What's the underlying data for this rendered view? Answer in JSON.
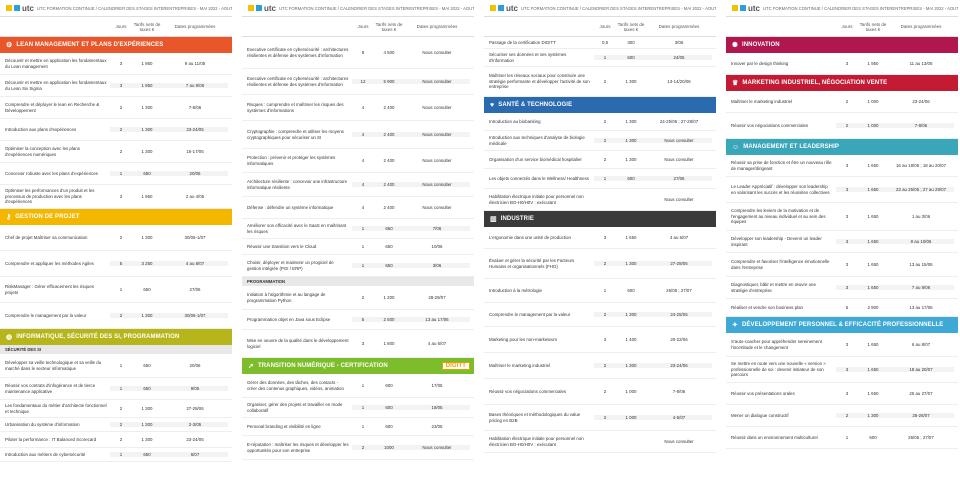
{
  "header": "UTC FORMATION CONTINUE / CALENDRIER DES STAGES INTERENTREPRISES - MAI 2022 - AOUT 2022",
  "logo": "utc",
  "cols": [
    "Jours",
    "Tarifs nets de taxes €",
    "Dates programmées"
  ],
  "colors": {
    "orange": "#e8562a",
    "gold": "#f3b700",
    "olive": "#b7b51c",
    "green": "#7dbd2c",
    "blue": "#2a6bb0",
    "dark": "#3a3a3a",
    "red": "#c41b35",
    "teal": "#3aa6b9",
    "cyan": "#3fa9d6",
    "magenta": "#b0174f"
  },
  "pages": [
    {
      "blocks": [
        {
          "title": "LEAN MANAGEMENT ET PLANS D'EXPÉRIENCES",
          "color": "#e8562a",
          "icon": "gear-icon",
          "glyph": "⚙",
          "rows": [
            {
              "t": "Découvrir et mettre en application les fondamentaux du Lean management",
              "d": "3",
              "p": "1 950",
              "g": "9 au 11/05",
              "h": 22
            },
            {
              "t": "Découvrir et mettre en application les fondamentaux du Lean Six Sigma",
              "d": "3",
              "p": "1 950",
              "g": "7 au 9/06",
              "h": 22
            },
            {
              "t": "Comprendre et déployer le lean en Recherche & Développement",
              "d": "2",
              "p": "1 300",
              "g": "7-8/06",
              "h": 22
            },
            {
              "t": "Introduction aux plans d'expériences",
              "d": "2",
              "p": "1 300",
              "g": "23-24/05",
              "h": 22
            },
            {
              "t": "Optimiser la conception avec les plans d'expériences numériques",
              "d": "2",
              "p": "1 300",
              "g": "16-17/05",
              "h": 22
            },
            {
              "t": "Concevoir robuste avec les plans d'expériences",
              "d": "1",
              "p": "650",
              "g": "20/05",
              "h": 22
            },
            {
              "t": "Optimiser les performances d'un produit et les processus de production avec les plans d'expériences",
              "d": "3",
              "p": "1 950",
              "g": "2 au 4/05",
              "h": 24
            }
          ]
        },
        {
          "title": "GESTION DE PROJET",
          "color": "#f3b700",
          "icon": "key-icon",
          "glyph": "⚷",
          "rows": [
            {
              "t": "Chef de projet Maîtriser sa communication",
              "d": "2",
              "p": "1 300",
              "g": "30/06-1/07",
              "h": 26
            },
            {
              "t": "Comprendre et appliquer les méthodes Agiles",
              "d": "5",
              "p": "3 250",
              "g": "4 au 8/07",
              "h": 26
            },
            {
              "t": "RiskManager : Gérer efficacement les risques projets",
              "d": "1",
              "p": "650",
              "g": "27/06",
              "h": 26
            },
            {
              "t": "Comprendre le management par la valeur",
              "d": "2",
              "p": "1 300",
              "g": "30/06-1/07",
              "h": 26
            }
          ]
        },
        {
          "title": "INFORMATIQUE, SÉCURITÉ DES SI, PROGRAMMATION",
          "color": "#b7b51c",
          "icon": "globe-icon",
          "glyph": "◍",
          "sub": "SÉCURITÉ DES SI",
          "rows": [
            {
              "t": "Développer sa veille technologique et sa veille du marché dans le secteur informatique",
              "d": "1",
              "p": "650",
              "g": "20/06",
              "h": 24
            },
            {
              "t": "Réussir vos contrats d'infogérance et de tierce maintenance applicative",
              "d": "1",
              "p": "650",
              "g": "9/05",
              "h": 22
            },
            {
              "t": "Les fondamentaux du métier d'architecte fonctionnel et technique",
              "d": "2",
              "p": "1 300",
              "g": "27-28/06",
              "h": 18
            },
            {
              "t": "Urbanisation du système d'information",
              "d": "2",
              "p": "1 300",
              "g": "2-3/05",
              "h": 14
            },
            {
              "t": "Piloter la performance : IT Balanced Scorecard",
              "d": "2",
              "p": "1 300",
              "g": "23-24/05",
              "h": 16
            },
            {
              "t": "Introduction aux métiers de cybersécurité",
              "d": "1",
              "p": "650",
              "g": "6/07",
              "h": 14
            }
          ]
        }
      ]
    },
    {
      "blocks": [
        {
          "rows": [
            {
              "t": "Executive certificate en cybersécurité : architectures résilientes et défense des systèmes d'information",
              "d": "8",
              "p": "4 500",
              "g": "Nous consulter",
              "h": 32
            },
            {
              "t": "Executive certificate en cybersécurité : architectures résilientes et défense des systèmes d'information",
              "d": "12",
              "p": "5 900",
              "g": "Nous consulter",
              "h": 26
            },
            {
              "t": "Risques : comprendre et maîtriser les risques des systèmes d'informations",
              "d": "4",
              "p": "2 400",
              "g": "Nous consulter",
              "h": 26
            },
            {
              "t": "Cryptographie : comprendre et utiliser les moyens cryptographiques pour sécuriser un SI",
              "d": "4",
              "p": "2 400",
              "g": "Nous consulter",
              "h": 28
            },
            {
              "t": "Protection : prévenir et protéger les systèmes informatiques",
              "d": "4",
              "p": "2 400",
              "g": "Nous consulter",
              "h": 24
            },
            {
              "t": "Architecture résiliente : concevoir une infrastructure informatique résiliente",
              "d": "4",
              "p": "2 400",
              "g": "Nous consulter",
              "h": 24
            },
            {
              "t": "Défense : défendre un système informatique",
              "d": "4",
              "p": "2 400",
              "g": "Nous consulter",
              "h": 22
            },
            {
              "t": "Améliorer son efficacité avec le SaaS en maîtrisant les risques",
              "d": "1",
              "p": "650",
              "g": "7/06",
              "h": 20
            },
            {
              "t": "Réussir une transition vers le Cloud",
              "d": "1",
              "p": "650",
              "g": "10/06",
              "h": 16
            },
            {
              "t": "Choisir, déployer et maintenir un progiciel de gestion intégrée (PGI / ERP)",
              "d": "1",
              "p": "650",
              "g": "3/06",
              "h": 22
            }
          ],
          "sub2": "PROGRAMMATION",
          "rows2": [
            {
              "t": "Initiation à l'algorithmie et au langage de programmation Python",
              "d": "2",
              "p": "1 200",
              "g": "28-29/07",
              "h": 24
            },
            {
              "t": "Programmation objet en Java sous Eclipse",
              "d": "5",
              "p": "2 500",
              "g": "13 au 17/06",
              "h": 20
            },
            {
              "t": "Mise en oeuvre de la qualité dans le développement logiciel",
              "d": "3",
              "p": "1 800",
              "g": "4 au 6/07",
              "h": 28
            }
          ]
        },
        {
          "title": "TRANSITION NUMÉRIQUE - CERTIFICATION",
          "color": "#7dbd2c",
          "icon": "rocket-icon",
          "glyph": "➚",
          "badge": "DIGITT",
          "rows": [
            {
              "t": "Gérer des données, des tâches, des contacts - créer des contenus graphiques, vidéos, animation",
              "d": "1",
              "p": "600",
              "g": "17/05",
              "h": 24
            },
            {
              "t": "Organiser, gérer des projets et travailler en mode collaboratif",
              "d": "1",
              "p": "600",
              "g": "18/05",
              "h": 20
            },
            {
              "t": "Personal branding et visibilité en ligne",
              "d": "1",
              "p": "600",
              "g": "23/05",
              "h": 18
            },
            {
              "t": "E-réputation : maîtriser les risques et développer les opportunités pour son entreprise",
              "d": "2",
              "p": "1000",
              "g": "Nous consulter",
              "h": 24
            }
          ]
        }
      ]
    },
    {
      "blocks": [
        {
          "rows": [
            {
              "t": "Passage de la certification DIGITT",
              "d": "0,5",
              "p": "300",
              "g": "3/06",
              "h": 12
            },
            {
              "t": "Sécuriser ses données et ses systèmes d'information",
              "d": "1",
              "p": "600",
              "g": "24/05",
              "h": 18
            },
            {
              "t": "Maîtriser les réseaux sociaux pour construire une stratégie performante et développer l'activité de son entreprise",
              "d": "2",
              "p": "1 300",
              "g": "13-14/20/06",
              "h": 30
            }
          ]
        },
        {
          "title": "SANTÉ & TECHNOLOGIE",
          "color": "#2a6bb0",
          "icon": "heart-icon",
          "glyph": "♥",
          "rows": [
            {
              "t": "Introduction au biobanking",
              "d": "2",
              "p": "1 300",
              "g": "24-25/05 ; 27-28/07",
              "h": 18
            },
            {
              "t": "Introduction aux techniques d'analyse de biologie médicale",
              "d": "2",
              "p": "1 300",
              "g": "Nous consulter",
              "h": 20
            },
            {
              "t": "Organisation d'un service biomédical hospitalier",
              "d": "2",
              "p": "1 300",
              "g": "Nous consulter",
              "h": 18
            },
            {
              "t": "Les objets connectés dans le Wellness/ Healthness",
              "d": "1",
              "p": "600",
              "g": "27/06",
              "h": 20
            },
            {
              "t": "Habilitation électrique initiale pour personnel non électricien BO-H0/H0V : exécutant",
              "d": "",
              "p": "",
              "g": "Nous consulter",
              "h": 22
            }
          ]
        },
        {
          "title": "INDUSTRIE",
          "color": "#3a3a3a",
          "icon": "factory-icon",
          "glyph": "▥",
          "rows": [
            {
              "t": "L'ergonomie dans une unité de production",
              "d": "3",
              "p": "1 650",
              "g": "4 au 6/07",
              "h": 22
            },
            {
              "t": "Évaluer et gérer la sécurité par les Facteurs Humains et organisationnels (FHO)",
              "d": "2",
              "p": "1 300",
              "g": "27-28/06",
              "h": 30
            },
            {
              "t": "Introduction à la métrologie",
              "d": "1",
              "p": "600",
              "g": "26/05 ; 27/07",
              "h": 24
            },
            {
              "t": "Comprendre le management par la valeur",
              "d": "2",
              "p": "1 300",
              "g": "24-25/05",
              "h": 24
            },
            {
              "t": "Marketing pour les non-marketeurs",
              "d": "3",
              "p": "1 400",
              "g": "20-22/06",
              "h": 26
            },
            {
              "t": "Maîtriser le marketing industriel",
              "d": "2",
              "p": "1 300",
              "g": "23-24/06",
              "h": 26
            },
            {
              "t": "Réussir vos négociations commerciales",
              "d": "2",
              "p": "1 000",
              "g": "7-8/06",
              "h": 26
            },
            {
              "t": "Bases théoriques et méthodologiques du value pricing en B2B",
              "d": "2",
              "p": "1 000",
              "g": "4-5/07",
              "h": 26
            },
            {
              "t": "Habilitation électrique initiale pour personnel non électricien BO-H0/H0V : exécutant",
              "d": "",
              "p": "",
              "g": "Nous consulter",
              "h": 22
            }
          ]
        }
      ]
    },
    {
      "blocks": [
        {
          "title": "INNOVATION",
          "color": "#b0174f",
          "icon": "lightbulb-icon",
          "glyph": "✺",
          "rows": [
            {
              "t": "Innover par le design thinking",
              "d": "3",
              "p": "1 950",
              "g": "11 au 13/05",
              "h": 22
            }
          ]
        },
        {
          "title": "MARKETING INDUSTRIEL, NÉGOCIATION VENTE",
          "color": "#c41b35",
          "icon": "trophy-icon",
          "glyph": "♛",
          "rows": [
            {
              "t": "Maîtriser le marketing industriel",
              "d": "2",
              "p": "1 000",
              "g": "23-24/06",
              "h": 22
            },
            {
              "t": "Réussir vos négociations commerciales",
              "d": "2",
              "p": "1 000",
              "g": "7-8/06",
              "h": 26
            }
          ]
        },
        {
          "title": "MANAGEMENT ET LEADERSHIP",
          "color": "#3aa6b9",
          "icon": "people-icon",
          "glyph": "☺",
          "rows": [
            {
              "t": "Réussir sa prise de fonction et être un nouveau rôle de manager/dirigeant",
              "d": "3",
              "p": "1 650",
              "g": "16 au 18/05 ; 18 au 20/07",
              "h": 22
            },
            {
              "t": "Le Leader Appréciatif : développer son leadership en valorisant les succès et les réussites collectives",
              "d": "3",
              "p": "1 650",
              "g": "23 au 25/05 ; 27 au 29/07",
              "h": 26
            },
            {
              "t": "Comprendre les leviers de la motivation et de l'engagement au niveau individuel et au sein des équipes",
              "d": "3",
              "p": "1 650",
              "g": "1 au 3/06",
              "h": 28
            },
            {
              "t": "Développer son leadership - Devenir un leader inspirant",
              "d": "3",
              "p": "1 650",
              "g": "8 au 10/06",
              "h": 22
            },
            {
              "t": "Comprendre et favoriser l'intelligence émotionnelle dans l'entreprise",
              "d": "3",
              "p": "1 650",
              "g": "13 au 15/06",
              "h": 24
            },
            {
              "t": "Diagnostiquer, bâtir et mettre en œuvre une stratégie d'entreprise",
              "d": "3",
              "p": "1 650",
              "g": "7 au 9/06",
              "h": 22
            },
            {
              "t": "Réaliser et vendre son business plan",
              "d": "5",
              "p": "2 900",
              "g": "13 au 17/06",
              "h": 18
            }
          ]
        },
        {
          "title": "DÉVELOPPEMENT PERSONNEL & EFFICACITÉ PROFESSIONNELLE",
          "color": "#3fa9d6",
          "icon": "star-icon",
          "glyph": "✦",
          "rows": [
            {
              "t": "S'auto-coacher pour appréhender sereinement l'incertitude et le changement",
              "d": "3",
              "p": "1 650",
              "g": "6 au 8/07",
              "h": 24
            },
            {
              "t": "Se mettre en route vers une nouvelle « version » professionnelle de soi : devenir initiateur de son parcours",
              "d": "3",
              "p": "1 650",
              "g": "18 au 20/07",
              "h": 26
            },
            {
              "t": "Réussir vos présentations orales",
              "d": "3",
              "p": "1 650",
              "g": "25 au 27/07",
              "h": 22
            },
            {
              "t": "Mener un dialogue constructif",
              "d": "2",
              "p": "1 300",
              "g": "25-26/07",
              "h": 22
            },
            {
              "t": "Réussir dans un environnement multiculturel",
              "d": "1",
              "p": "600",
              "g": "26/05 ; 27/07",
              "h": 22
            }
          ]
        }
      ]
    }
  ]
}
